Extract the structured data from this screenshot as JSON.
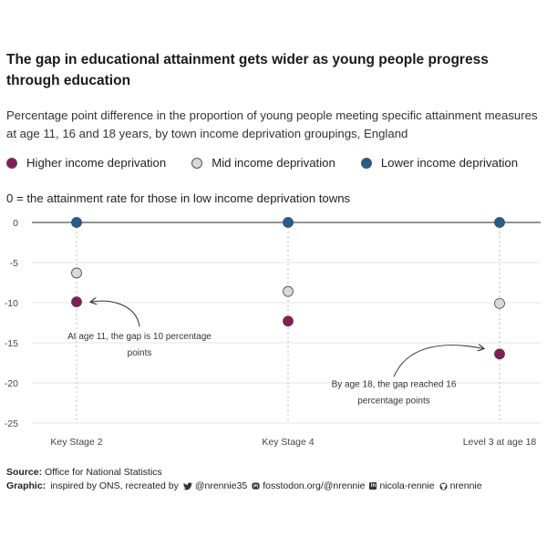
{
  "title": "The gap in educational attainment gets wider as young people progress through education",
  "subtitle": "Percentage point difference in the proportion of young people meeting specific attainment measures at age 11, 16 and 18 years, by town income deprivation groupings, England",
  "zero_note": "0 = the attainment rate for those in low income deprivation towns",
  "colors": {
    "higher": "#8b1a54",
    "mid": "#d9d9d9",
    "lower": "#1f5f94",
    "axis": "#555555",
    "grid": "#e6e6e6"
  },
  "footer": {
    "source_label": "Source:",
    "source_text": "Office for National Statistics",
    "graphic_label": "Graphic:",
    "graphic_text": "inspired by ONS, recreated by",
    "twitter_icon": "twitter-icon",
    "twitter": "@nrennie35",
    "mastodon_icon": "mastodon-icon",
    "mastodon": "fosstodon.org/@nrennie",
    "linkedin_icon": "linkedin-icon",
    "linkedin": "nicola-rennie",
    "github_icon": "github-icon",
    "github": "nrennie"
  },
  "chart_data": {
    "type": "scatter",
    "title": "The gap in educational attainment gets wider as young people progress through education",
    "categories": [
      "Key Stage 2",
      "Key Stage 4",
      "Level 3 at age 18"
    ],
    "series": [
      {
        "name": "Higher income deprivation",
        "color": "#8b1a54",
        "values": [
          -9.9,
          -12.3,
          -16.4
        ]
      },
      {
        "name": "Mid income deprivation",
        "color": "#d9d9d9",
        "values": [
          -6.3,
          -8.6,
          -10.1
        ]
      },
      {
        "name": "Lower income deprivation",
        "color": "#1f5f94",
        "values": [
          0,
          0,
          0
        ]
      }
    ],
    "ylim": [
      -25,
      0
    ],
    "yticks": [
      0,
      -5,
      -10,
      -15,
      -20,
      -25
    ],
    "ytick_labels": [
      "0",
      "-5",
      "-10",
      "-15",
      "-20",
      "-25"
    ],
    "xlabel": "",
    "ylabel": "",
    "grid": true,
    "annotations": [
      {
        "lines": [
          "At age 11, the gap is 10 percentage",
          "points"
        ],
        "category": "Key Stage 2",
        "target": -9.9
      },
      {
        "lines": [
          "By age 18, the gap reached 16",
          "percentage points"
        ],
        "category": "Level 3 at age 18",
        "target": -16.4
      }
    ]
  }
}
